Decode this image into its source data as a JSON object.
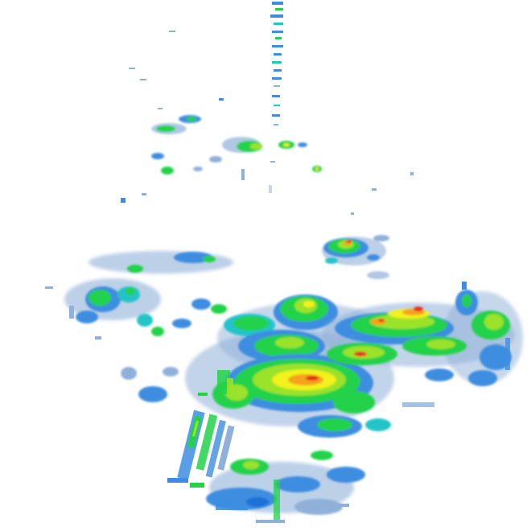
{
  "map": {
    "type": "weather-radar-reflectivity",
    "background": "#ffffff",
    "palette": {
      "very_light": "#c8d6e6",
      "light": "#8fb0d8",
      "blue": "#3d8de0",
      "deep_blue": "#1f6fd8",
      "cyan": "#21c4c8",
      "green": "#23d24a",
      "lime": "#9be22c",
      "yellow": "#f2f21c",
      "orange": "#f5a21b",
      "red": "#e8321e"
    },
    "features": [
      "north-radial-spoke",
      "northwest-scattered-cells",
      "east-central-cell",
      "west-band",
      "central-storm-complex",
      "east-storm-band",
      "southern-band",
      "southwest-streaks"
    ]
  }
}
